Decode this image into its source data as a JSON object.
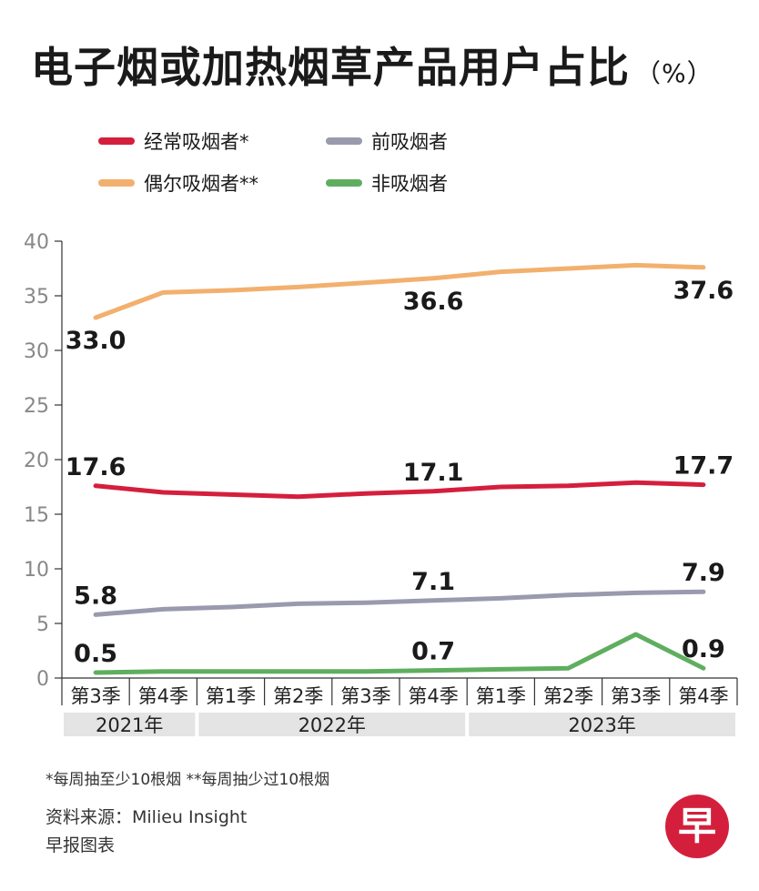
{
  "header": {
    "title": "电子烟或加热烟草产品用户占比",
    "unit": "（%）"
  },
  "legend": {
    "items": [
      {
        "key": "regular",
        "label": "经常吸烟者*",
        "color": "#d41f3c"
      },
      {
        "key": "former",
        "label": "前吸烟者",
        "color": "#9a9aae"
      },
      {
        "key": "occasional",
        "label": "偶尔吸烟者**",
        "color": "#f2b06e"
      },
      {
        "key": "non",
        "label": "非吸烟者",
        "color": "#5fae5f"
      }
    ]
  },
  "chart_data": {
    "type": "line",
    "title": "电子烟或加热烟草产品用户占比",
    "ylabel": "%",
    "xlabel": "",
    "ylim": [
      0,
      40
    ],
    "yticks": [
      0,
      5,
      10,
      15,
      20,
      25,
      30,
      35,
      40
    ],
    "categories": [
      "第3季",
      "第4季",
      "第1季",
      "第2季",
      "第3季",
      "第4季",
      "第1季",
      "第2季",
      "第3季",
      "第4季"
    ],
    "year_groups": [
      {
        "label": "2021年",
        "span": [
          0,
          1
        ]
      },
      {
        "label": "2022年",
        "span": [
          2,
          5
        ]
      },
      {
        "label": "2023年",
        "span": [
          6,
          9
        ]
      }
    ],
    "series": [
      {
        "name": "偶尔吸烟者**",
        "key": "occasional",
        "color": "#f2b06e",
        "values": [
          33.0,
          35.3,
          35.5,
          35.8,
          36.2,
          36.6,
          37.2,
          37.5,
          37.8,
          37.6
        ],
        "labels": [
          {
            "index": 0,
            "text": "33.0",
            "pos": "below"
          },
          {
            "index": 5,
            "text": "36.6",
            "pos": "below"
          },
          {
            "index": 9,
            "text": "37.6",
            "pos": "below"
          }
        ]
      },
      {
        "name": "经常吸烟者*",
        "key": "regular",
        "color": "#d41f3c",
        "values": [
          17.6,
          17.0,
          16.8,
          16.6,
          16.9,
          17.1,
          17.5,
          17.6,
          17.9,
          17.7
        ],
        "labels": [
          {
            "index": 0,
            "text": "17.6",
            "pos": "above"
          },
          {
            "index": 5,
            "text": "17.1",
            "pos": "above"
          },
          {
            "index": 9,
            "text": "17.7",
            "pos": "above"
          }
        ]
      },
      {
        "name": "前吸烟者",
        "key": "former",
        "color": "#9a9aae",
        "values": [
          5.8,
          6.3,
          6.5,
          6.8,
          6.9,
          7.1,
          7.3,
          7.6,
          7.8,
          7.9
        ],
        "labels": [
          {
            "index": 0,
            "text": "5.8",
            "pos": "above"
          },
          {
            "index": 5,
            "text": "7.1",
            "pos": "above"
          },
          {
            "index": 9,
            "text": "7.9",
            "pos": "above"
          }
        ]
      },
      {
        "name": "非吸烟者",
        "key": "non",
        "color": "#5fae5f",
        "values": [
          0.5,
          0.6,
          0.6,
          0.6,
          0.6,
          0.7,
          0.8,
          0.9,
          4.0,
          0.9
        ],
        "labels": [
          {
            "index": 0,
            "text": "0.5",
            "pos": "above"
          },
          {
            "index": 5,
            "text": "0.7",
            "pos": "above"
          },
          {
            "index": 9,
            "text": "0.9",
            "pos": "above"
          }
        ]
      }
    ]
  },
  "footer": {
    "footnote": "*每周抽至少10根烟  **每周抽少过10根烟",
    "source": "资料来源：Milieu Insight",
    "credit": "早报图表",
    "logo_char": "早",
    "logo_color": "#d41f3c"
  }
}
